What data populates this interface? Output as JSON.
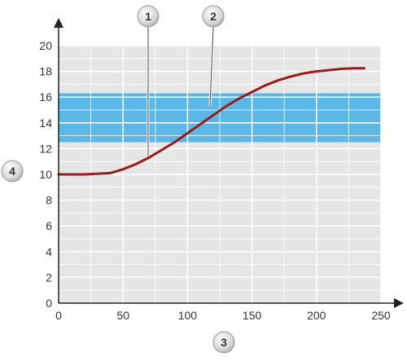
{
  "chart_data": {
    "type": "line",
    "title": "",
    "xlabel": "",
    "ylabel": "",
    "xlim": [
      0,
      250
    ],
    "ylim": [
      0,
      20
    ],
    "xticks": [
      0,
      50,
      100,
      150,
      200,
      250
    ],
    "yticks": [
      0,
      2,
      4,
      6,
      8,
      10,
      12,
      14,
      16,
      18,
      20
    ],
    "grid": true,
    "legend": "none",
    "band": {
      "y_from": 12.5,
      "y_to": 16.3,
      "color": "#5bb8e6"
    },
    "series": [
      {
        "color": "#9b1b1b",
        "x": [
          0,
          20,
          40,
          50,
          60,
          70,
          80,
          90,
          100,
          110,
          120,
          130,
          140,
          150,
          160,
          170,
          180,
          190,
          200,
          210,
          220,
          230,
          237
        ],
        "y": [
          10.0,
          10.0,
          10.1,
          10.4,
          10.8,
          11.3,
          11.9,
          12.5,
          13.2,
          13.9,
          14.6,
          15.3,
          15.9,
          16.4,
          16.9,
          17.3,
          17.6,
          17.85,
          18.0,
          18.1,
          18.2,
          18.25,
          18.25
        ]
      }
    ],
    "callouts": [
      {
        "label": "1"
      },
      {
        "label": "2"
      },
      {
        "label": "3"
      },
      {
        "label": "4"
      }
    ],
    "colors": {
      "plot_bg": "#e6e6e6",
      "grid": "#ffffff",
      "axis": "#222222",
      "band_line": "#ffffff"
    }
  }
}
